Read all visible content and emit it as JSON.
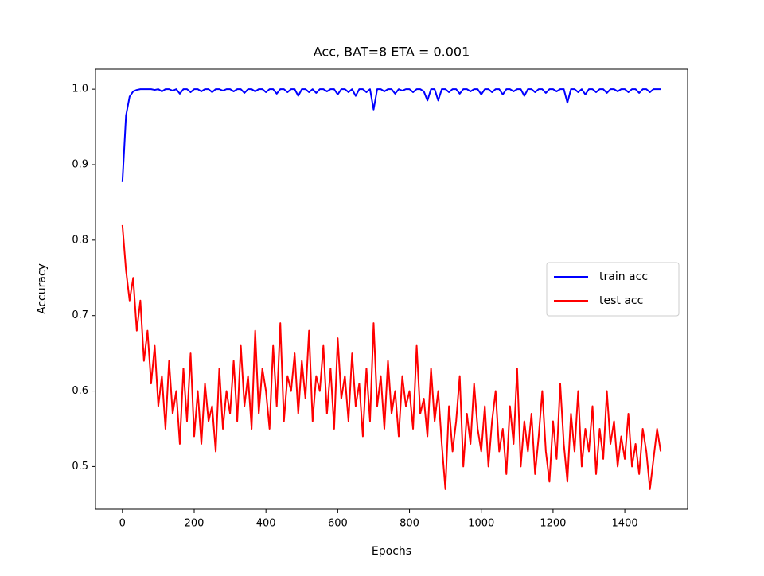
{
  "chart_data": {
    "type": "line",
    "title": "Acc, BAT=8 ETA = 0.001",
    "x_label": "Epochs",
    "y_label": "Accuracy",
    "x": [
      0,
      10,
      20,
      30,
      40,
      50,
      60,
      70,
      80,
      90,
      100,
      110,
      120,
      130,
      140,
      150,
      160,
      170,
      180,
      190,
      200,
      210,
      220,
      230,
      240,
      250,
      260,
      270,
      280,
      290,
      300,
      310,
      320,
      330,
      340,
      350,
      360,
      370,
      380,
      390,
      400,
      410,
      420,
      430,
      440,
      450,
      460,
      470,
      480,
      490,
      500,
      510,
      520,
      530,
      540,
      550,
      560,
      570,
      580,
      590,
      600,
      610,
      620,
      630,
      640,
      650,
      660,
      670,
      680,
      690,
      700,
      710,
      720,
      730,
      740,
      750,
      760,
      770,
      780,
      790,
      800,
      810,
      820,
      830,
      840,
      850,
      860,
      870,
      880,
      890,
      900,
      910,
      920,
      930,
      940,
      950,
      960,
      970,
      980,
      990,
      1000,
      1010,
      1020,
      1030,
      1040,
      1050,
      1060,
      1070,
      1080,
      1090,
      1100,
      1110,
      1120,
      1130,
      1140,
      1150,
      1160,
      1170,
      1180,
      1190,
      1200,
      1210,
      1220,
      1230,
      1240,
      1250,
      1260,
      1270,
      1280,
      1290,
      1300,
      1310,
      1320,
      1330,
      1340,
      1350,
      1360,
      1370,
      1380,
      1390,
      1400,
      1410,
      1420,
      1430,
      1440,
      1450,
      1460,
      1470,
      1480,
      1490,
      1500
    ],
    "series": [
      {
        "name": "train acc",
        "color": "#0000ff",
        "values": [
          0.877,
          0.965,
          0.99,
          0.997,
          0.999,
          1.0,
          1.0,
          1.0,
          1.0,
          0.999,
          1.0,
          0.997,
          1.0,
          1.0,
          0.998,
          1.0,
          0.994,
          1.0,
          1.0,
          0.996,
          1.0,
          1.0,
          0.997,
          1.0,
          1.0,
          0.996,
          1.0,
          1.0,
          0.998,
          1.0,
          1.0,
          0.997,
          1.0,
          1.0,
          0.995,
          1.0,
          1.0,
          0.997,
          1.0,
          1.0,
          0.996,
          1.0,
          1.0,
          0.994,
          1.0,
          1.0,
          0.996,
          1.0,
          1.0,
          0.991,
          1.0,
          1.0,
          0.996,
          1.0,
          0.995,
          1.0,
          1.0,
          0.997,
          1.0,
          1.0,
          0.993,
          1.0,
          1.0,
          0.996,
          1.0,
          0.991,
          1.0,
          1.0,
          0.996,
          1.0,
          0.973,
          1.0,
          1.0,
          0.997,
          1.0,
          1.0,
          0.994,
          1.0,
          0.998,
          1.0,
          1.0,
          0.996,
          1.0,
          1.0,
          0.997,
          0.985,
          1.0,
          1.0,
          0.985,
          1.0,
          1.0,
          0.996,
          1.0,
          1.0,
          0.994,
          1.0,
          1.0,
          0.997,
          1.0,
          1.0,
          0.993,
          1.0,
          1.0,
          0.996,
          1.0,
          1.0,
          0.993,
          1.0,
          1.0,
          0.997,
          1.0,
          1.0,
          0.991,
          1.0,
          1.0,
          0.996,
          1.0,
          1.0,
          0.995,
          1.0,
          1.0,
          0.997,
          1.0,
          1.0,
          0.982,
          1.0,
          1.0,
          0.996,
          1.0,
          0.993,
          1.0,
          1.0,
          0.996,
          1.0,
          1.0,
          0.995,
          1.0,
          1.0,
          0.997,
          1.0,
          1.0,
          0.996,
          1.0,
          1.0,
          0.995,
          1.0,
          1.0,
          0.996,
          1.0,
          1.0,
          1.0
        ]
      },
      {
        "name": "test acc",
        "color": "#ff0000",
        "values": [
          0.82,
          0.76,
          0.72,
          0.75,
          0.68,
          0.72,
          0.64,
          0.68,
          0.61,
          0.66,
          0.58,
          0.62,
          0.55,
          0.64,
          0.57,
          0.6,
          0.53,
          0.63,
          0.56,
          0.65,
          0.54,
          0.6,
          0.53,
          0.61,
          0.56,
          0.58,
          0.52,
          0.63,
          0.55,
          0.6,
          0.57,
          0.64,
          0.56,
          0.66,
          0.58,
          0.62,
          0.55,
          0.68,
          0.57,
          0.63,
          0.6,
          0.55,
          0.66,
          0.58,
          0.69,
          0.56,
          0.62,
          0.6,
          0.65,
          0.57,
          0.64,
          0.59,
          0.68,
          0.56,
          0.62,
          0.6,
          0.66,
          0.57,
          0.63,
          0.55,
          0.67,
          0.59,
          0.62,
          0.56,
          0.65,
          0.58,
          0.61,
          0.54,
          0.63,
          0.56,
          0.69,
          0.58,
          0.62,
          0.55,
          0.64,
          0.57,
          0.6,
          0.54,
          0.62,
          0.58,
          0.6,
          0.55,
          0.66,
          0.57,
          0.59,
          0.54,
          0.63,
          0.56,
          0.6,
          0.53,
          0.47,
          0.58,
          0.52,
          0.56,
          0.62,
          0.5,
          0.57,
          0.53,
          0.61,
          0.55,
          0.52,
          0.58,
          0.5,
          0.56,
          0.6,
          0.52,
          0.55,
          0.49,
          0.58,
          0.53,
          0.63,
          0.5,
          0.56,
          0.52,
          0.57,
          0.49,
          0.54,
          0.6,
          0.52,
          0.48,
          0.56,
          0.51,
          0.61,
          0.53,
          0.48,
          0.57,
          0.52,
          0.6,
          0.5,
          0.55,
          0.52,
          0.58,
          0.49,
          0.55,
          0.51,
          0.6,
          0.53,
          0.56,
          0.5,
          0.54,
          0.51,
          0.57,
          0.5,
          0.53,
          0.49,
          0.55,
          0.52,
          0.47,
          0.51,
          0.55,
          0.52
        ]
      }
    ],
    "xlim": [
      -75,
      1575
    ],
    "xticks": [
      0,
      200,
      400,
      600,
      800,
      1000,
      1200,
      1400
    ],
    "ylim": [
      0.4435,
      1.0265
    ],
    "yticks": [
      0.5,
      0.6,
      0.7,
      0.8,
      0.9,
      {
        "value": 1,
        "label": "1.0"
      }
    ],
    "legend": "center right"
  }
}
